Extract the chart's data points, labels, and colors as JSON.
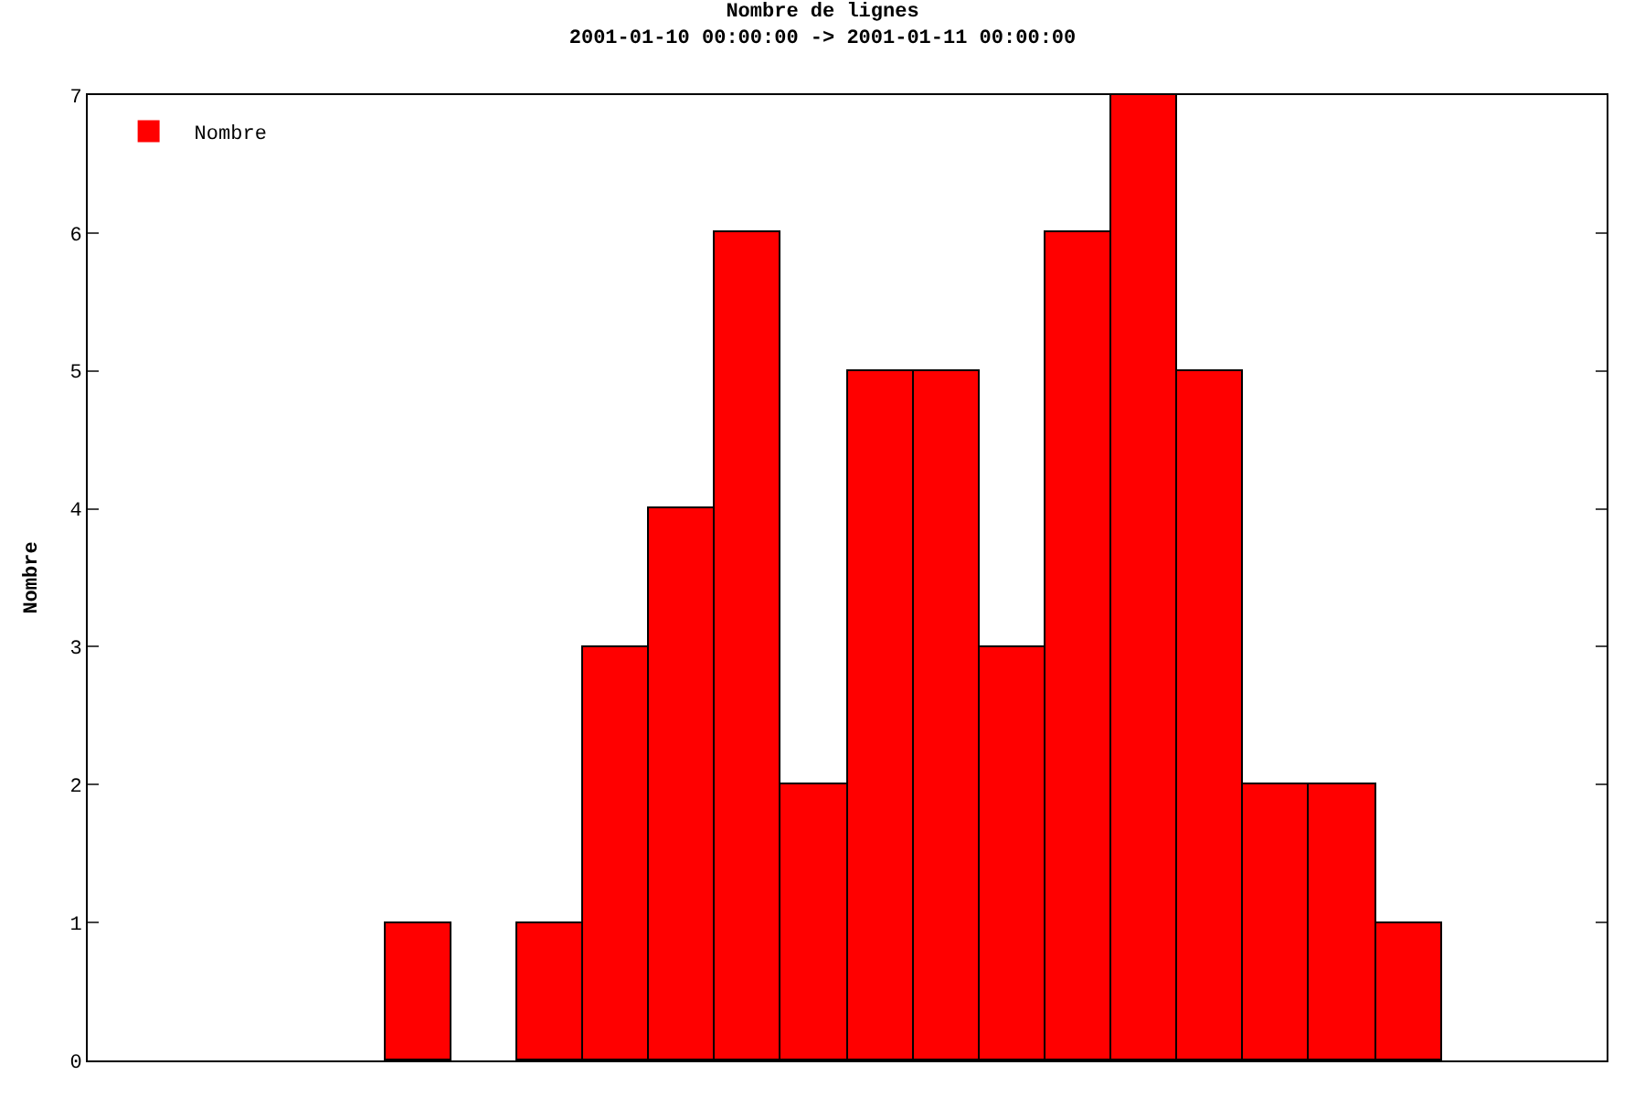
{
  "chart_data": {
    "type": "bar",
    "title": "Nombre de lignes",
    "subtitle": "2001-01-10 00:00:00 -> 2001-01-11 00:00:00",
    "ylabel": "Nombre",
    "categories": [
      null,
      null,
      null,
      null,
      null,
      null,
      null,
      null,
      null,
      null,
      null,
      null,
      null,
      null,
      null,
      null,
      null,
      null,
      null,
      null,
      null,
      null,
      null,
      null
    ],
    "series": [
      {
        "name": "Nombre",
        "color": "#ff0000",
        "values": [
          0,
          0,
          0,
          0,
          0,
          1,
          0,
          1,
          3,
          4,
          6,
          2,
          5,
          5,
          3,
          6,
          7,
          5,
          2,
          2,
          1,
          0,
          0,
          0
        ]
      }
    ],
    "ylim": [
      0,
      7
    ],
    "yticks": [
      0,
      1,
      2,
      3,
      4,
      5,
      6,
      7
    ],
    "legend": "top left"
  }
}
